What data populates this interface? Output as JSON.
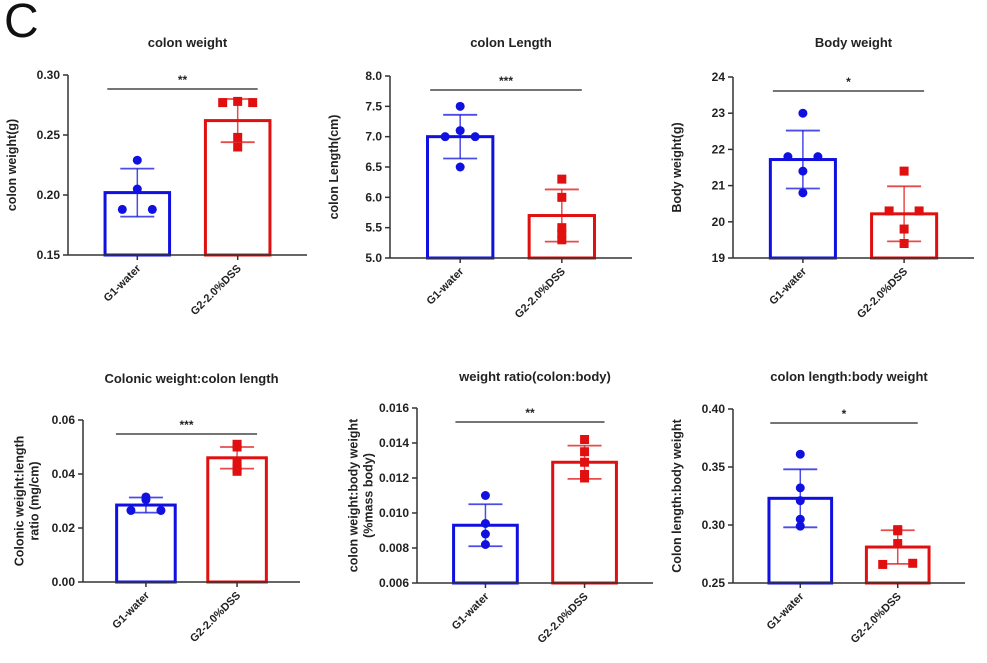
{
  "panel_label": "C",
  "colors": {
    "g1": "#1010e0",
    "g2": "#e01010",
    "axis": "#333333"
  },
  "chart_data": [
    {
      "type": "bar",
      "title": "colon weight",
      "ylabel": [
        "colon weight(g)"
      ],
      "ylim": [
        0.15,
        0.3
      ],
      "yticks": [
        "0.15",
        "0.20",
        "0.25",
        "0.30"
      ],
      "categories": [
        "G1-water",
        "G2-2.0%DSS"
      ],
      "significance": "**",
      "series": [
        {
          "name": "G1-water",
          "mean": 0.202,
          "sd": 0.02,
          "points": [
            0.229,
            0.205,
            0.188,
            0.188
          ]
        },
        {
          "name": "G2-2.0%DSS",
          "mean": 0.262,
          "sd": 0.018,
          "points": [
            0.277,
            0.278,
            0.277,
            0.248,
            0.24
          ]
        }
      ]
    },
    {
      "type": "bar",
      "title": "colon Length",
      "ylabel": [
        "colon Length(cm)"
      ],
      "ylim": [
        5.0,
        8.0
      ],
      "yticks": [
        "5.0",
        "5.5",
        "6.0",
        "6.5",
        "7.0",
        "7.5",
        "8.0"
      ],
      "categories": [
        "G1-water",
        "G2-2.0%DSS"
      ],
      "significance": "***",
      "series": [
        {
          "name": "G1-water",
          "mean": 7.0,
          "sd": 0.36,
          "points": [
            7.5,
            7.1,
            7.0,
            7.0,
            6.5
          ]
        },
        {
          "name": "G2-2.0%DSS",
          "mean": 5.7,
          "sd": 0.43,
          "points": [
            6.3,
            6.0,
            5.5,
            5.4,
            5.3
          ]
        }
      ]
    },
    {
      "type": "bar",
      "title": "Body weight",
      "ylabel": [
        "Body weight(g)"
      ],
      "ylim": [
        19,
        24
      ],
      "yticks": [
        "19",
        "20",
        "21",
        "22",
        "23",
        "24"
      ],
      "categories": [
        "G1-water",
        "G2-2.0%DSS"
      ],
      "significance": "*",
      "series": [
        {
          "name": "G1-water",
          "mean": 21.72,
          "sd": 0.8,
          "points": [
            23.0,
            21.8,
            21.8,
            21.4,
            20.8
          ]
        },
        {
          "name": "G2-2.0%DSS",
          "mean": 20.22,
          "sd": 0.76,
          "points": [
            21.4,
            20.3,
            20.3,
            19.8,
            19.4
          ]
        }
      ]
    },
    {
      "type": "bar",
      "title": "Colonic weight:colon length",
      "ylabel": [
        "Colonic weight:length",
        "ratio (mg/cm)"
      ],
      "ylim": [
        0,
        0.06
      ],
      "yticks": [
        "0.00",
        "0.02",
        "0.04",
        "0.06"
      ],
      "categories": [
        "G1-water",
        "G2-2.0%DSS"
      ],
      "significance": "***",
      "series": [
        {
          "name": "G1-water",
          "mean": 0.0285,
          "sd": 0.0028,
          "points": [
            0.0315,
            0.0305,
            0.0265,
            0.0265
          ]
        },
        {
          "name": "G2-2.0%DSS",
          "mean": 0.046,
          "sd": 0.004,
          "points": [
            0.051,
            0.05,
            0.0445,
            0.042,
            0.041
          ]
        }
      ]
    },
    {
      "type": "bar",
      "title": "weight ratio(colon:body)",
      "ylabel": [
        "colon weight:body weight",
        "(%mass body)"
      ],
      "ylim": [
        0.006,
        0.016
      ],
      "yticks": [
        "0.006",
        "0.008",
        "0.010",
        "0.012",
        "0.014",
        "0.016"
      ],
      "categories": [
        "G1-water",
        "G2-2.0%DSS"
      ],
      "significance": "**",
      "series": [
        {
          "name": "G1-water",
          "mean": 0.0093,
          "sd": 0.0012,
          "points": [
            0.011,
            0.0094,
            0.0088,
            0.0082
          ]
        },
        {
          "name": "G2-2.0%DSS",
          "mean": 0.0129,
          "sd": 0.00095,
          "points": [
            0.0142,
            0.0135,
            0.0129,
            0.012,
            0.0122
          ]
        }
      ]
    },
    {
      "type": "bar",
      "title": "colon length:body weight",
      "ylabel": [
        "Colon length:body weight"
      ],
      "ylim": [
        0.25,
        0.4
      ],
      "yticks": [
        "0.25",
        "0.30",
        "0.35",
        "0.40"
      ],
      "categories": [
        "G1-water",
        "G2-2.0%DSS"
      ],
      "significance": "*",
      "series": [
        {
          "name": "G1-water",
          "mean": 0.323,
          "sd": 0.025,
          "points": [
            0.361,
            0.332,
            0.321,
            0.305,
            0.299
          ]
        },
        {
          "name": "G2-2.0%DSS",
          "mean": 0.281,
          "sd": 0.0145,
          "points": [
            0.295,
            0.296,
            0.284,
            0.266,
            0.267
          ]
        }
      ]
    }
  ]
}
